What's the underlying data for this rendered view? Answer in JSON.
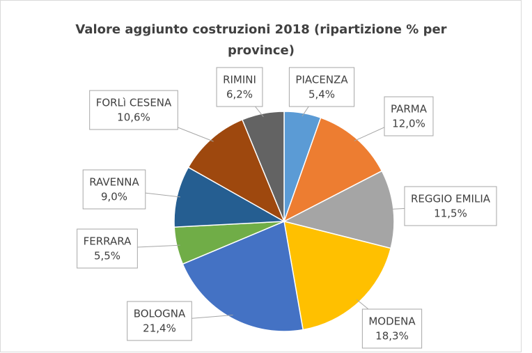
{
  "chart_data": {
    "type": "pie",
    "title": "Valore aggiunto costruzioni 2018 (ripartizione % per province)",
    "categories": [
      "PIACENZA",
      "PARMA",
      "REGGIO EMILIA",
      "MODENA",
      "BOLOGNA",
      "FERRARA",
      "RAVENNA",
      "FORLì CESENA",
      "RIMINI"
    ],
    "values": [
      5.4,
      12.0,
      11.5,
      18.3,
      21.4,
      5.5,
      9.0,
      10.6,
      6.2
    ],
    "value_labels": [
      "5,4%",
      "12,0%",
      "11,5%",
      "18,3%",
      "21,4%",
      "5,5%",
      "9,0%",
      "10,6%",
      "6,2%"
    ],
    "colors": [
      "#5b9bd5",
      "#ed7d31",
      "#a5a5a5",
      "#ffc000",
      "#4472c4",
      "#70ad47",
      "#255e91",
      "#9e480e",
      "#636363"
    ]
  }
}
